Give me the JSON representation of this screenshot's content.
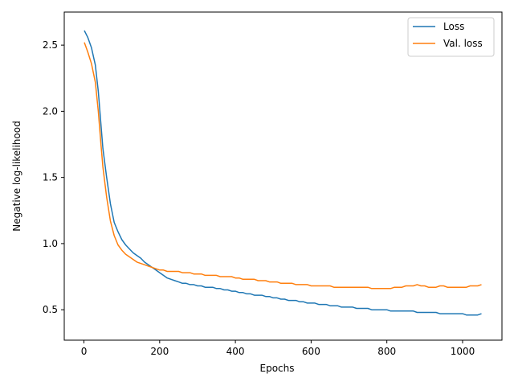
{
  "chart_data": {
    "type": "line",
    "xlabel": "Epochs",
    "ylabel": "Negative log-likelihood",
    "xlim": [
      -52,
      1104
    ],
    "ylim": [
      0.27,
      2.75
    ],
    "x_ticks": [
      0,
      200,
      400,
      600,
      800,
      1000
    ],
    "y_ticks": [
      0.5,
      1.0,
      1.5,
      2.0,
      2.5
    ],
    "y_tick_labels": [
      "0.5",
      "1.0",
      "1.5",
      "2.0",
      "2.5"
    ],
    "grid": false,
    "legend_position": "top-right",
    "series": [
      {
        "name": "Loss",
        "color": "#1f77b4",
        "x": [
          1,
          10,
          20,
          30,
          38,
          45,
          50,
          60,
          70,
          80,
          90,
          100,
          110,
          120,
          130,
          140,
          150,
          160,
          170,
          180,
          190,
          200,
          210,
          220,
          230,
          240,
          250,
          260,
          270,
          280,
          290,
          300,
          310,
          320,
          330,
          340,
          350,
          360,
          370,
          380,
          390,
          400,
          410,
          420,
          430,
          440,
          450,
          460,
          470,
          480,
          490,
          500,
          510,
          520,
          530,
          540,
          550,
          560,
          570,
          580,
          590,
          600,
          610,
          620,
          630,
          640,
          650,
          660,
          670,
          680,
          690,
          700,
          710,
          720,
          730,
          740,
          750,
          760,
          770,
          780,
          790,
          800,
          810,
          820,
          830,
          840,
          850,
          860,
          870,
          880,
          890,
          900,
          910,
          920,
          930,
          940,
          950,
          960,
          970,
          980,
          990,
          1000,
          1010,
          1020,
          1030,
          1040,
          1050
        ],
        "y": [
          2.61,
          2.56,
          2.48,
          2.35,
          2.15,
          1.9,
          1.72,
          1.5,
          1.3,
          1.16,
          1.09,
          1.03,
          0.99,
          0.96,
          0.93,
          0.91,
          0.89,
          0.86,
          0.84,
          0.82,
          0.8,
          0.78,
          0.76,
          0.74,
          0.73,
          0.72,
          0.71,
          0.7,
          0.7,
          0.69,
          0.69,
          0.68,
          0.68,
          0.67,
          0.67,
          0.67,
          0.66,
          0.66,
          0.65,
          0.65,
          0.64,
          0.64,
          0.63,
          0.63,
          0.62,
          0.62,
          0.61,
          0.61,
          0.61,
          0.6,
          0.6,
          0.59,
          0.59,
          0.58,
          0.58,
          0.57,
          0.57,
          0.57,
          0.56,
          0.56,
          0.55,
          0.55,
          0.55,
          0.54,
          0.54,
          0.54,
          0.53,
          0.53,
          0.53,
          0.52,
          0.52,
          0.52,
          0.52,
          0.51,
          0.51,
          0.51,
          0.51,
          0.5,
          0.5,
          0.5,
          0.5,
          0.5,
          0.49,
          0.49,
          0.49,
          0.49,
          0.49,
          0.49,
          0.49,
          0.48,
          0.48,
          0.48,
          0.48,
          0.48,
          0.48,
          0.47,
          0.47,
          0.47,
          0.47,
          0.47,
          0.47,
          0.47,
          0.46,
          0.46,
          0.46,
          0.46,
          0.47
        ]
      },
      {
        "name": "Val. loss",
        "color": "#ff7f0e",
        "x": [
          1,
          10,
          20,
          30,
          38,
          45,
          50,
          60,
          70,
          80,
          90,
          100,
          110,
          120,
          130,
          140,
          150,
          160,
          170,
          180,
          190,
          200,
          210,
          220,
          230,
          240,
          250,
          260,
          270,
          280,
          290,
          300,
          310,
          320,
          330,
          340,
          350,
          360,
          370,
          380,
          390,
          400,
          410,
          420,
          430,
          440,
          450,
          460,
          470,
          480,
          490,
          500,
          510,
          520,
          530,
          540,
          550,
          560,
          570,
          580,
          590,
          600,
          610,
          620,
          630,
          640,
          650,
          660,
          670,
          680,
          690,
          700,
          710,
          720,
          730,
          740,
          750,
          760,
          770,
          780,
          790,
          800,
          810,
          820,
          830,
          840,
          850,
          860,
          870,
          880,
          890,
          900,
          910,
          920,
          930,
          940,
          950,
          960,
          970,
          980,
          990,
          1000,
          1010,
          1020,
          1030,
          1040,
          1050
        ],
        "y": [
          2.52,
          2.45,
          2.36,
          2.22,
          2.0,
          1.75,
          1.58,
          1.35,
          1.17,
          1.06,
          0.99,
          0.95,
          0.92,
          0.9,
          0.88,
          0.86,
          0.85,
          0.84,
          0.83,
          0.82,
          0.81,
          0.8,
          0.8,
          0.79,
          0.79,
          0.79,
          0.79,
          0.78,
          0.78,
          0.78,
          0.77,
          0.77,
          0.77,
          0.76,
          0.76,
          0.76,
          0.76,
          0.75,
          0.75,
          0.75,
          0.75,
          0.74,
          0.74,
          0.73,
          0.73,
          0.73,
          0.73,
          0.72,
          0.72,
          0.72,
          0.71,
          0.71,
          0.71,
          0.7,
          0.7,
          0.7,
          0.7,
          0.69,
          0.69,
          0.69,
          0.69,
          0.68,
          0.68,
          0.68,
          0.68,
          0.68,
          0.68,
          0.67,
          0.67,
          0.67,
          0.67,
          0.67,
          0.67,
          0.67,
          0.67,
          0.67,
          0.67,
          0.66,
          0.66,
          0.66,
          0.66,
          0.66,
          0.66,
          0.67,
          0.67,
          0.67,
          0.68,
          0.68,
          0.68,
          0.69,
          0.68,
          0.68,
          0.67,
          0.67,
          0.67,
          0.68,
          0.68,
          0.67,
          0.67,
          0.67,
          0.67,
          0.67,
          0.67,
          0.68,
          0.68,
          0.68,
          0.69
        ]
      }
    ]
  }
}
